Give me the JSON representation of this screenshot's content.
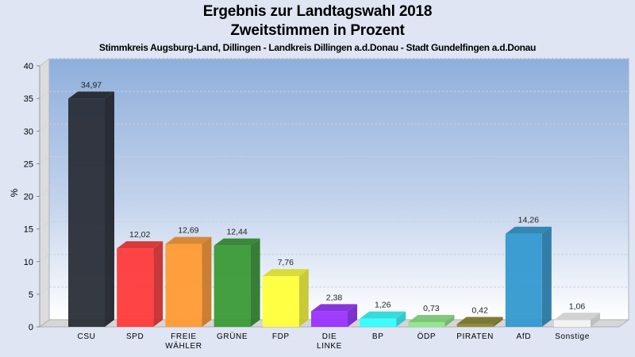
{
  "chart_data": {
    "type": "bar",
    "title": "Ergebnis zur Landtagswahl 2018",
    "subtitle": "Zweitstimmen in Prozent",
    "subtitle2": "Stimmkreis Augsburg-Land, Dillingen - Landkreis Dillingen a.d.Donau - Stadt Gundelfingen a.d.Donau",
    "xlabel": "",
    "ylabel": "%",
    "ylim": [
      0,
      40
    ],
    "yticks": [
      "0",
      "5",
      "10",
      "15",
      "20",
      "25",
      "30",
      "35",
      "40"
    ],
    "grid": true,
    "legend": "none",
    "categories": [
      "CSU",
      "SPD",
      "FREIE WÄHLER",
      "GRÜNE",
      "FDP",
      "DIE LINKE",
      "BP",
      "ÖDP",
      "PIRATEN",
      "AfD",
      "Sonstige"
    ],
    "category_lines": [
      [
        "CSU"
      ],
      [
        "SPD"
      ],
      [
        "FREIE",
        "WÄHLER"
      ],
      [
        "GRÜNE"
      ],
      [
        "FDP"
      ],
      [
        "DIE",
        "LINKE"
      ],
      [
        "BP"
      ],
      [
        "ÖDP"
      ],
      [
        "PIRATEN"
      ],
      [
        "AfD"
      ],
      [
        "Sonstige"
      ]
    ],
    "values": [
      34.97,
      12.02,
      12.69,
      12.44,
      7.76,
      2.38,
      1.26,
      0.73,
      0.42,
      14.26,
      1.06
    ],
    "value_labels": [
      "34,97",
      "12,02",
      "12,69",
      "12,44",
      "7,76",
      "2,38",
      "1,26",
      "0,73",
      "0,42",
      "14,26",
      "1,06"
    ],
    "colors": [
      "#2a2e38",
      "#ff3a3a",
      "#ff9a33",
      "#3a9a36",
      "#ffff3a",
      "#9933ff",
      "#33ffff",
      "#8fe88a",
      "#8c8a30",
      "#3399d0",
      "#f4f4f4"
    ]
  }
}
